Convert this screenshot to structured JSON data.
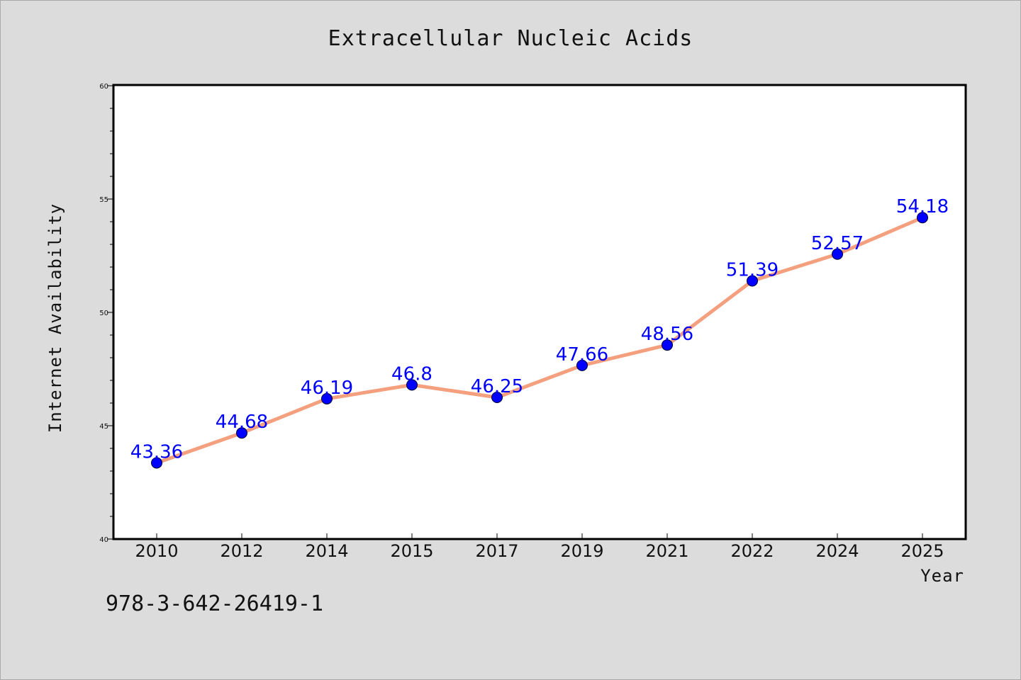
{
  "chart_data": {
    "type": "line",
    "title": "Extracellular Nucleic Acids",
    "xlabel": "Year",
    "ylabel": "Internet Availability",
    "categories": [
      "2010",
      "2012",
      "2014",
      "2015",
      "2017",
      "2019",
      "2021",
      "2022",
      "2024",
      "2025"
    ],
    "series": [
      {
        "values": [
          43.36,
          44.68,
          46.19,
          46.8,
          46.25,
          47.66,
          48.56,
          51.39,
          52.57,
          54.18
        ],
        "labels": [
          "43.36",
          "44.68",
          "46.19",
          "46.8",
          "46.25",
          "47.66",
          "48.56",
          "51.39",
          "52.57",
          "54.18"
        ],
        "line_color": "#f4a07f",
        "marker_color": "#0000ff"
      }
    ],
    "ylim": [
      40,
      60
    ],
    "y_ticks": [
      "40",
      "45",
      "50",
      "55",
      "60"
    ],
    "grid": false,
    "data_label_color": "#0000ff"
  },
  "footer": {
    "isbn": "978-3-642-26419-1"
  }
}
